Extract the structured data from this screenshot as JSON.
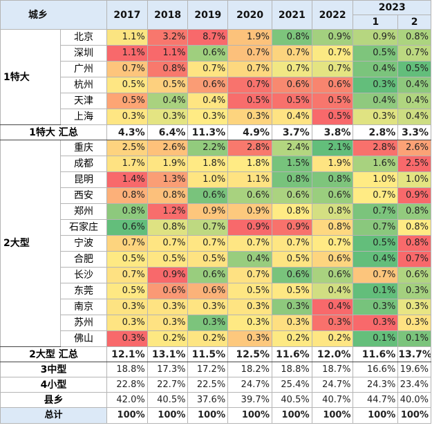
{
  "header": {
    "region_label": "城乡",
    "years": [
      "2017",
      "2018",
      "2019",
      "2020",
      "2021",
      "2022"
    ],
    "year_2023": "2023",
    "sub_2023": [
      "1",
      "2"
    ]
  },
  "groups": [
    {
      "name": "1特大",
      "rows": [
        {
          "city": "北京",
          "values": [
            "1.1%",
            "3.2%",
            "8.7%",
            "1.9%",
            "0.8%",
            "0.9%",
            "0.9%",
            "0.8%"
          ],
          "colors": [
            "#fbe481",
            "#f8776d",
            "#f8696b",
            "#fcc27b",
            "#7dc57c",
            "#a3d07f",
            "#b6d680",
            "#acd47f"
          ]
        },
        {
          "city": "深圳",
          "values": [
            "1.1%",
            "1.1%",
            "0.6%",
            "0.7%",
            "0.7%",
            "0.7%",
            "0.5%",
            "0.7%"
          ],
          "colors": [
            "#f8696b",
            "#f8696b",
            "#9fcf7e",
            "#fcc07b",
            "#fcd47e",
            "#fbe983",
            "#7ec57c",
            "#bcd981"
          ]
        },
        {
          "city": "广州",
          "values": [
            "0.7%",
            "0.8%",
            "0.7%",
            "0.7%",
            "0.7%",
            "0.7%",
            "0.4%",
            "0.5%"
          ],
          "colors": [
            "#fdc57c",
            "#f8796d",
            "#fee482",
            "#fdd87f",
            "#f1e784",
            "#e4e482",
            "#7bc47c",
            "#63be7b"
          ]
        },
        {
          "city": "杭州",
          "values": [
            "0.5%",
            "0.5%",
            "0.6%",
            "0.7%",
            "0.6%",
            "0.6%",
            "0.3%",
            "0.4%"
          ],
          "colors": [
            "#fee683",
            "#fdd07e",
            "#fa9c75",
            "#f8736d",
            "#f88970",
            "#f8856f",
            "#63be7b",
            "#8ec97d"
          ]
        },
        {
          "city": "天津",
          "values": [
            "0.5%",
            "0.4%",
            "0.4%",
            "0.5%",
            "0.5%",
            "0.5%",
            "0.4%",
            "0.4%"
          ],
          "colors": [
            "#fda574",
            "#a9d27f",
            "#fee582",
            "#f86d6c",
            "#f8716c",
            "#f8766d",
            "#8fc97e",
            "#b0d580"
          ]
        },
        {
          "city": "上海",
          "values": [
            "0.3%",
            "0.3%",
            "0.3%",
            "0.3%",
            "0.4%",
            "0.5%",
            "0.3%",
            "0.4%"
          ],
          "colors": [
            "#fee683",
            "#e4e482",
            "#ffeb84",
            "#fdd47e",
            "#fee383",
            "#f8696b",
            "#e0e382",
            "#cddd82"
          ]
        }
      ],
      "total": {
        "label": "1特大 汇总",
        "values": [
          "4.3%",
          "6.4%",
          "11.3%",
          "4.9%",
          "3.7%",
          "3.8%",
          "2.8%",
          "3.3%"
        ]
      }
    },
    {
      "name": "2大型",
      "rows": [
        {
          "city": "重庆",
          "values": [
            "2.5%",
            "2.6%",
            "2.2%",
            "2.8%",
            "2.4%",
            "2.1%",
            "2.8%",
            "2.6%"
          ],
          "colors": [
            "#fdd37f",
            "#fec17a",
            "#92cb7d",
            "#f8796d",
            "#b3d680",
            "#63be7b",
            "#f8716c",
            "#fba276"
          ]
        },
        {
          "city": "成都",
          "values": [
            "1.7%",
            "1.9%",
            "1.8%",
            "1.8%",
            "1.5%",
            "1.9%",
            "1.6%",
            "2.5%"
          ],
          "colors": [
            "#fee282",
            "#fee582",
            "#ffea84",
            "#ffeb84",
            "#77c37c",
            "#fee482",
            "#a8d27f",
            "#f8696b"
          ]
        },
        {
          "city": "昆明",
          "values": [
            "1.4%",
            "1.3%",
            "1.0%",
            "1.1%",
            "0.8%",
            "0.8%",
            "1.0%",
            "1.0%"
          ],
          "colors": [
            "#f8696b",
            "#fa9e75",
            "#fee582",
            "#fee382",
            "#78c37c",
            "#7ec57c",
            "#ffeb84",
            "#e4e482"
          ]
        },
        {
          "city": "西安",
          "values": [
            "0.8%",
            "0.8%",
            "0.6%",
            "0.6%",
            "0.6%",
            "0.6%",
            "0.7%",
            "0.9%"
          ],
          "colors": [
            "#fcb079",
            "#fcc07b",
            "#79c37c",
            "#a8d27f",
            "#abd380",
            "#9ace7e",
            "#ffeb84",
            "#f8696b"
          ]
        },
        {
          "city": "郑州",
          "values": [
            "0.8%",
            "1.2%",
            "0.9%",
            "0.9%",
            "0.8%",
            "0.8%",
            "0.7%",
            "0.8%"
          ],
          "colors": [
            "#8dc97d",
            "#f86d6c",
            "#fdc67c",
            "#fdc97d",
            "#ffeb84",
            "#d4df82",
            "#7bc47c",
            "#93cb7e"
          ]
        },
        {
          "city": "石家庄",
          "values": [
            "0.6%",
            "0.8%",
            "0.7%",
            "0.9%",
            "0.9%",
            "0.8%",
            "0.7%",
            "0.8%"
          ],
          "colors": [
            "#63be7b",
            "#dee282",
            "#bed981",
            "#f8696b",
            "#f8726c",
            "#fed880",
            "#8ac87d",
            "#ffeb84"
          ]
        },
        {
          "city": "宁波",
          "values": [
            "0.7%",
            "0.7%",
            "0.7%",
            "0.7%",
            "0.7%",
            "0.7%",
            "0.5%",
            "0.8%"
          ],
          "colors": [
            "#fdd47e",
            "#fee582",
            "#fee683",
            "#fee683",
            "#fee683",
            "#ffea84",
            "#63be7b",
            "#f86a6b"
          ]
        },
        {
          "city": "合肥",
          "values": [
            "0.5%",
            "0.5%",
            "0.5%",
            "0.4%",
            "0.5%",
            "0.6%",
            "0.4%",
            "0.7%"
          ],
          "colors": [
            "#fee983",
            "#fee683",
            "#fee382",
            "#98cd7e",
            "#fee582",
            "#fdd57f",
            "#63be7b",
            "#f8696b"
          ]
        },
        {
          "city": "长沙",
          "values": [
            "0.7%",
            "0.9%",
            "0.6%",
            "0.7%",
            "0.6%",
            "0.6%",
            "0.7%",
            "0.6%"
          ],
          "colors": [
            "#fee182",
            "#f8696b",
            "#99cd7e",
            "#fee182",
            "#79c37c",
            "#a9d27f",
            "#fcc57c",
            "#b0d580"
          ]
        },
        {
          "city": "东莞",
          "values": [
            "0.5%",
            "0.6%",
            "0.6%",
            "0.5%",
            "0.5%",
            "0.4%",
            "0.1%",
            "0.3%"
          ],
          "colors": [
            "#fee883",
            "#fa9975",
            "#fbb279",
            "#fee683",
            "#fee883",
            "#d1de82",
            "#63be7b",
            "#a4d07f"
          ]
        },
        {
          "city": "南京",
          "values": [
            "0.3%",
            "0.3%",
            "0.3%",
            "0.3%",
            "0.3%",
            "0.4%",
            "0.3%",
            "0.3%"
          ],
          "colors": [
            "#fde382",
            "#fee382",
            "#fee482",
            "#fee482",
            "#8ec97d",
            "#f8696b",
            "#77c37c",
            "#e8e583"
          ]
        },
        {
          "city": "苏州",
          "values": [
            "0.3%",
            "0.3%",
            "0.3%",
            "0.3%",
            "0.3%",
            "0.3%",
            "0.3%",
            "0.3%"
          ],
          "colors": [
            "#fee482",
            "#fee282",
            "#7cc47c",
            "#fee983",
            "#fedf81",
            "#f8716c",
            "#f8696b",
            "#fee282"
          ]
        },
        {
          "city": "佛山",
          "values": [
            "0.3%",
            "0.2%",
            "0.2%",
            "0.3%",
            "0.2%",
            "0.2%",
            "0.1%",
            "0.1%"
          ],
          "colors": [
            "#f8696b",
            "#fde882",
            "#fde582",
            "#fdc87d",
            "#fde983",
            "#fee683",
            "#65bf7b",
            "#7bc47c"
          ]
        }
      ],
      "total": {
        "label": "2大型 汇总",
        "values": [
          "12.1%",
          "13.1%",
          "11.5%",
          "12.5%",
          "11.6%",
          "12.0%",
          "11.6%",
          "13.7%"
        ]
      }
    }
  ],
  "other_rows": [
    {
      "label": "3中型",
      "values": [
        "18.8%",
        "17.3%",
        "17.2%",
        "18.2%",
        "18.8%",
        "18.7%",
        "16.6%",
        "19.6%"
      ]
    },
    {
      "label": "4小型",
      "values": [
        "22.8%",
        "22.7%",
        "22.5%",
        "24.7%",
        "25.4%",
        "24.7%",
        "24.3%",
        "23.4%"
      ]
    },
    {
      "label": "县乡",
      "values": [
        "42.0%",
        "40.5%",
        "37.6%",
        "39.7%",
        "40.5%",
        "40.7%",
        "44.7%",
        "40.0%"
      ]
    }
  ],
  "grand_total": {
    "label": "总计",
    "values": [
      "100%",
      "100%",
      "100%",
      "100%",
      "100%",
      "100%",
      "100%",
      "100%"
    ]
  }
}
